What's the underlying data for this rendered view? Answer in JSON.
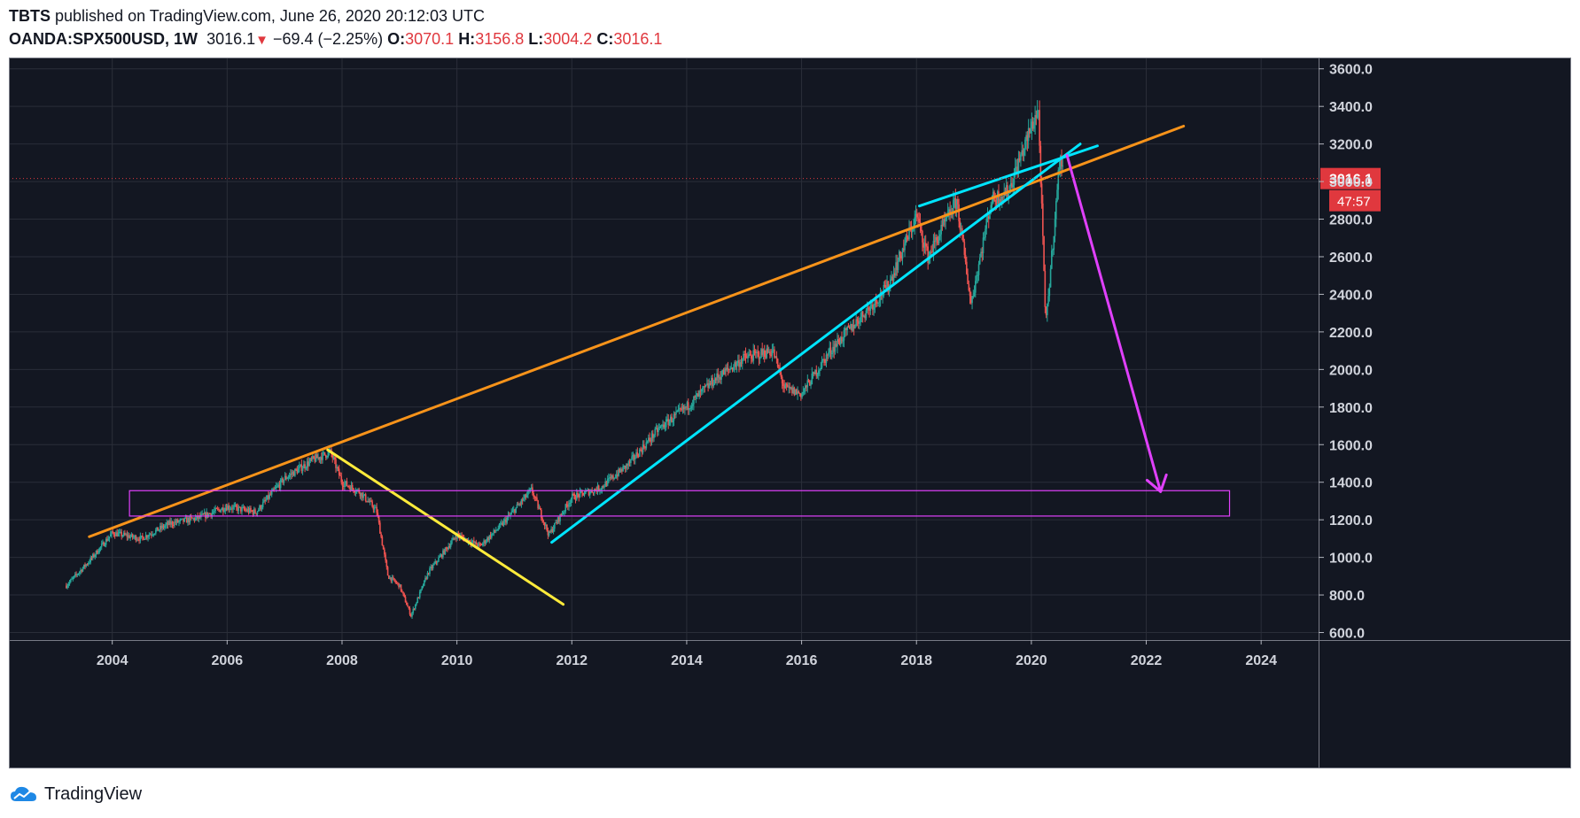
{
  "header": {
    "publisher": "TBTS",
    "published_text": "published on TradingView.com, June 26, 2020 20:12:03 UTC",
    "symbol": "OANDA:SPX500USD, 1W",
    "last": "3016.1",
    "change": "−69.4 (−2.25%)",
    "o_label": "O:",
    "o_value": "3070.1",
    "h_label": "H:",
    "h_value": "3156.8",
    "l_label": "L:",
    "l_value": "3004.2",
    "c_label": "C:",
    "c_value": "3016.1"
  },
  "footer": {
    "brand": "TradingView",
    "logo_icon": "tradingview-cloud-icon"
  },
  "colors": {
    "background": "#131722",
    "grid": "#2a2e39",
    "orange": "#f7931a",
    "cyan": "#00e5ff",
    "yellow": "#ffeb3b",
    "magenta": "#e040fb",
    "price_line": "#e0383e",
    "up": "#26a69a",
    "down": "#ef5350"
  },
  "chart_data": {
    "type": "candlestick",
    "x_unit": "year",
    "y_unit": "price",
    "xlim": [
      2002.2,
      2025.0
    ],
    "ylim": [
      560,
      3660
    ],
    "x_ticks": [
      "2004",
      "2006",
      "2008",
      "2010",
      "2012",
      "2014",
      "2016",
      "2018",
      "2020",
      "2022",
      "2024"
    ],
    "y_ticks": [
      "600.0",
      "800.0",
      "1000.0",
      "1200.0",
      "1400.0",
      "1600.0",
      "1800.0",
      "2000.0",
      "2200.0",
      "2400.0",
      "2600.0",
      "2800.0",
      "3000.0",
      "3200.0",
      "3400.0",
      "3600.0"
    ],
    "price_path": [
      {
        "x": 2003.2,
        "y": 850
      },
      {
        "x": 2003.6,
        "y": 980
      },
      {
        "x": 2004.0,
        "y": 1130
      },
      {
        "x": 2004.5,
        "y": 1100
      },
      {
        "x": 2005.0,
        "y": 1180
      },
      {
        "x": 2005.5,
        "y": 1210
      },
      {
        "x": 2006.0,
        "y": 1270
      },
      {
        "x": 2006.5,
        "y": 1240
      },
      {
        "x": 2007.0,
        "y": 1420
      },
      {
        "x": 2007.5,
        "y": 1520
      },
      {
        "x": 2007.8,
        "y": 1560
      },
      {
        "x": 2008.0,
        "y": 1400
      },
      {
        "x": 2008.3,
        "y": 1350
      },
      {
        "x": 2008.6,
        "y": 1250
      },
      {
        "x": 2008.8,
        "y": 900
      },
      {
        "x": 2009.0,
        "y": 850
      },
      {
        "x": 2009.2,
        "y": 690
      },
      {
        "x": 2009.5,
        "y": 920
      },
      {
        "x": 2010.0,
        "y": 1120
      },
      {
        "x": 2010.4,
        "y": 1060
      },
      {
        "x": 2010.8,
        "y": 1180
      },
      {
        "x": 2011.3,
        "y": 1360
      },
      {
        "x": 2011.6,
        "y": 1120
      },
      {
        "x": 2012.0,
        "y": 1320
      },
      {
        "x": 2012.5,
        "y": 1370
      },
      {
        "x": 2013.0,
        "y": 1500
      },
      {
        "x": 2013.5,
        "y": 1680
      },
      {
        "x": 2014.0,
        "y": 1800
      },
      {
        "x": 2014.5,
        "y": 1950
      },
      {
        "x": 2015.0,
        "y": 2060
      },
      {
        "x": 2015.5,
        "y": 2100
      },
      {
        "x": 2015.7,
        "y": 1900
      },
      {
        "x": 2016.0,
        "y": 1870
      },
      {
        "x": 2016.5,
        "y": 2100
      },
      {
        "x": 2017.0,
        "y": 2270
      },
      {
        "x": 2017.5,
        "y": 2440
      },
      {
        "x": 2018.0,
        "y": 2820
      },
      {
        "x": 2018.2,
        "y": 2600
      },
      {
        "x": 2018.7,
        "y": 2900
      },
      {
        "x": 2018.95,
        "y": 2350
      },
      {
        "x": 2019.3,
        "y": 2900
      },
      {
        "x": 2019.6,
        "y": 2950
      },
      {
        "x": 2020.0,
        "y": 3290
      },
      {
        "x": 2020.12,
        "y": 3390
      },
      {
        "x": 2020.25,
        "y": 2230
      },
      {
        "x": 2020.45,
        "y": 2950
      },
      {
        "x": 2020.5,
        "y": 3150
      },
      {
        "x": 2020.56,
        "y": 3016
      }
    ],
    "annotations": [
      {
        "type": "trendline",
        "color": "orange",
        "from": {
          "x": 2003.6,
          "y": 1110
        },
        "to": {
          "x": 2022.65,
          "y": 3295
        }
      },
      {
        "type": "trendline",
        "color": "yellow",
        "from": {
          "x": 2007.75,
          "y": 1572
        },
        "to": {
          "x": 2011.85,
          "y": 750
        }
      },
      {
        "type": "trendline",
        "color": "cyan",
        "from": {
          "x": 2011.65,
          "y": 1080
        },
        "to": {
          "x": 2020.85,
          "y": 3200
        }
      },
      {
        "type": "trendline",
        "color": "cyan",
        "from": {
          "x": 2018.05,
          "y": 2870
        },
        "to": {
          "x": 2021.15,
          "y": 3190
        }
      },
      {
        "type": "arrow",
        "color": "magenta",
        "from": {
          "x": 2020.62,
          "y": 3140
        },
        "to": {
          "x": 2022.25,
          "y": 1350
        }
      },
      {
        "type": "rectangle",
        "color": "magenta",
        "x1": 2004.3,
        "x2": 2023.45,
        "y1": 1220,
        "y2": 1355
      }
    ],
    "current_price": 3016.1,
    "price_label": "3016.1",
    "countdown_label": "47:57"
  }
}
